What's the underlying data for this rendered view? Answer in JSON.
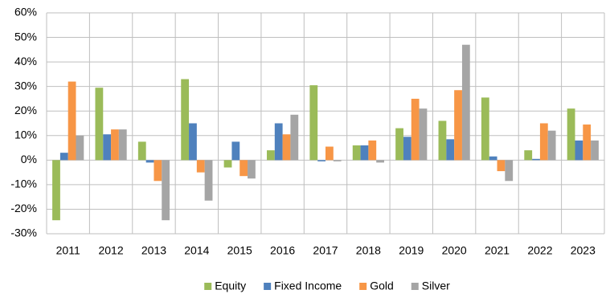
{
  "chart_data": {
    "type": "bar",
    "categories": [
      "2011",
      "2012",
      "2013",
      "2014",
      "2015",
      "2016",
      "2017",
      "2018",
      "2019",
      "2020",
      "2021",
      "2022",
      "2023"
    ],
    "series": [
      {
        "name": "Equity",
        "color": "#9bbb59",
        "values": [
          -24.5,
          29.5,
          7.5,
          33,
          -3,
          4,
          30.5,
          6,
          13,
          16,
          25.5,
          4,
          21
        ]
      },
      {
        "name": "Fixed Income",
        "color": "#4f81bd",
        "values": [
          3,
          10.5,
          -1,
          15,
          7.5,
          15,
          -0.5,
          6,
          9.5,
          8.5,
          1.5,
          0.5,
          8
        ]
      },
      {
        "name": "Gold",
        "color": "#f79646",
        "values": [
          32,
          12.5,
          -8.5,
          -5,
          -6.5,
          10.5,
          5.5,
          8,
          25,
          28.5,
          -4.5,
          15,
          14.5
        ]
      },
      {
        "name": "Silver",
        "color": "#a5a5a5",
        "values": [
          10,
          12.5,
          -24.5,
          -16.5,
          -7.5,
          18.5,
          -0.5,
          -1,
          21,
          47,
          -8.5,
          12,
          8
        ]
      }
    ],
    "ylim": [
      -30,
      60
    ],
    "yticks": [
      {
        "value": -30,
        "label": "-30%"
      },
      {
        "value": -20,
        "label": "-20%"
      },
      {
        "value": -10,
        "label": "-10%"
      },
      {
        "value": 0,
        "label": "0%"
      },
      {
        "value": 10,
        "label": "10%"
      },
      {
        "value": 20,
        "label": "20%"
      },
      {
        "value": 30,
        "label": "30%"
      },
      {
        "value": 40,
        "label": "40%"
      },
      {
        "value": 50,
        "label": "50%"
      },
      {
        "value": 60,
        "label": "60%"
      }
    ],
    "grid": true,
    "legend": "bottom"
  }
}
